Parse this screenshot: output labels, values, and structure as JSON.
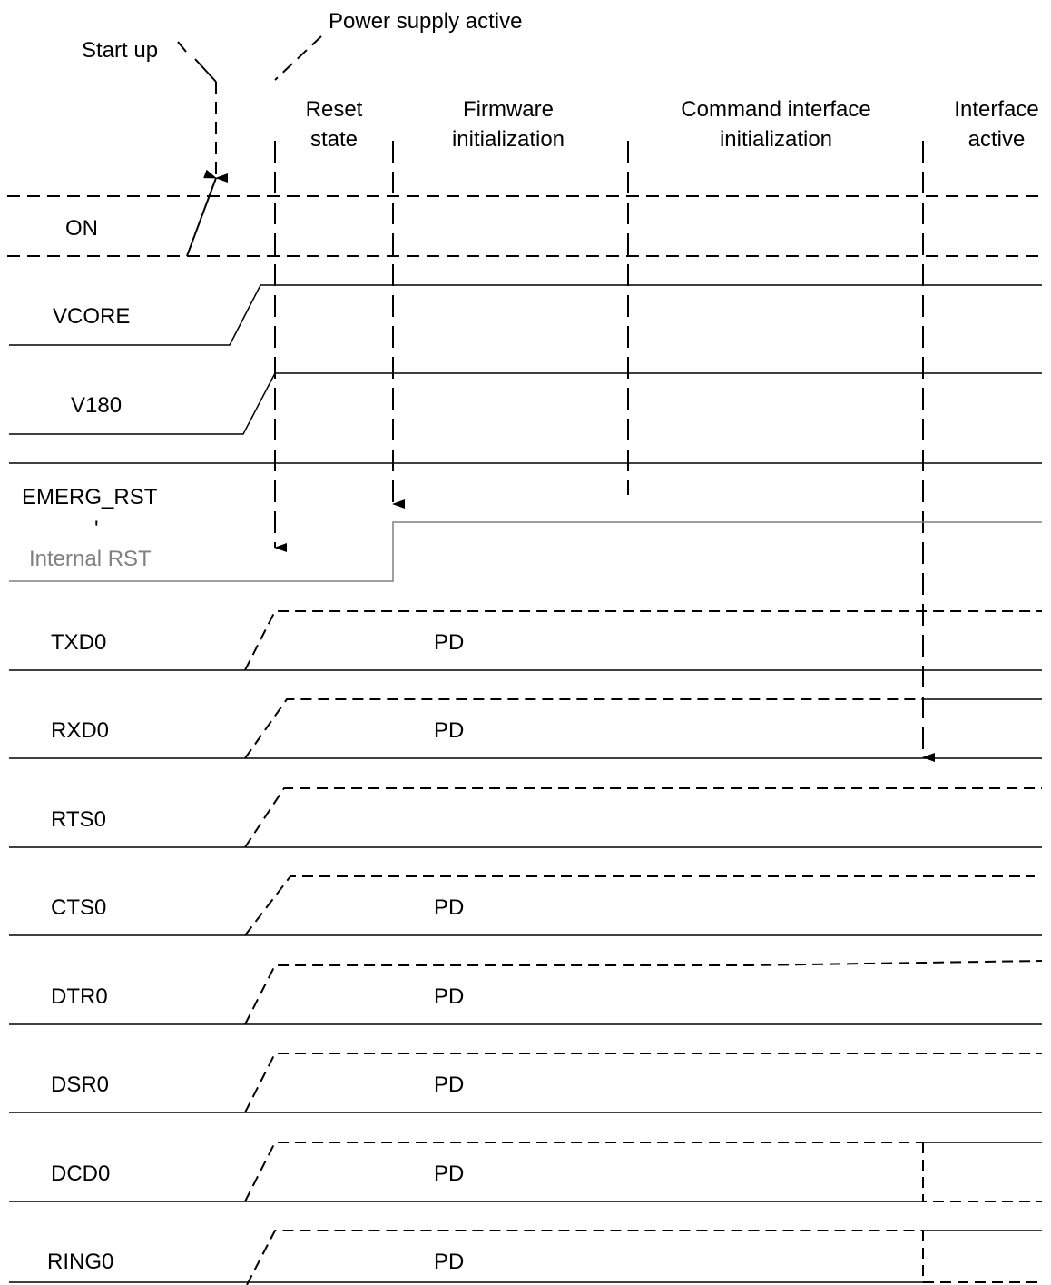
{
  "annotations": {
    "start_up": "Start up",
    "power_supply_active": "Power supply active"
  },
  "phases": [
    {
      "line1": "Reset",
      "line2": "state"
    },
    {
      "line1": "Firmware",
      "line2": "initialization"
    },
    {
      "line1": "Command interface",
      "line2": "initialization"
    },
    {
      "line1": "Interface",
      "line2": "active"
    }
  ],
  "signals": {
    "on": "ON",
    "vcore": "VCORE",
    "v180": "V180",
    "emerg_rst": "EMERG_RST",
    "emerg_rst_separator": "'",
    "internal_rst": "Internal RST",
    "txd0": "TXD0",
    "rxd0": "RXD0",
    "rts0": "RTS0",
    "cts0": "CTS0",
    "dtr0": "DTR0",
    "dsr0": "DSR0",
    "dcd0": "DCD0",
    "ring0": "RING0"
  },
  "pd_labels": {
    "txd0": "PD",
    "rxd0": "PD",
    "cts0": "PD",
    "dtr0": "PD",
    "dsr0": "PD",
    "dcd0": "PD",
    "ring0": "PD"
  },
  "colors": {
    "line": "#000000",
    "internal_rst": "#808080"
  }
}
